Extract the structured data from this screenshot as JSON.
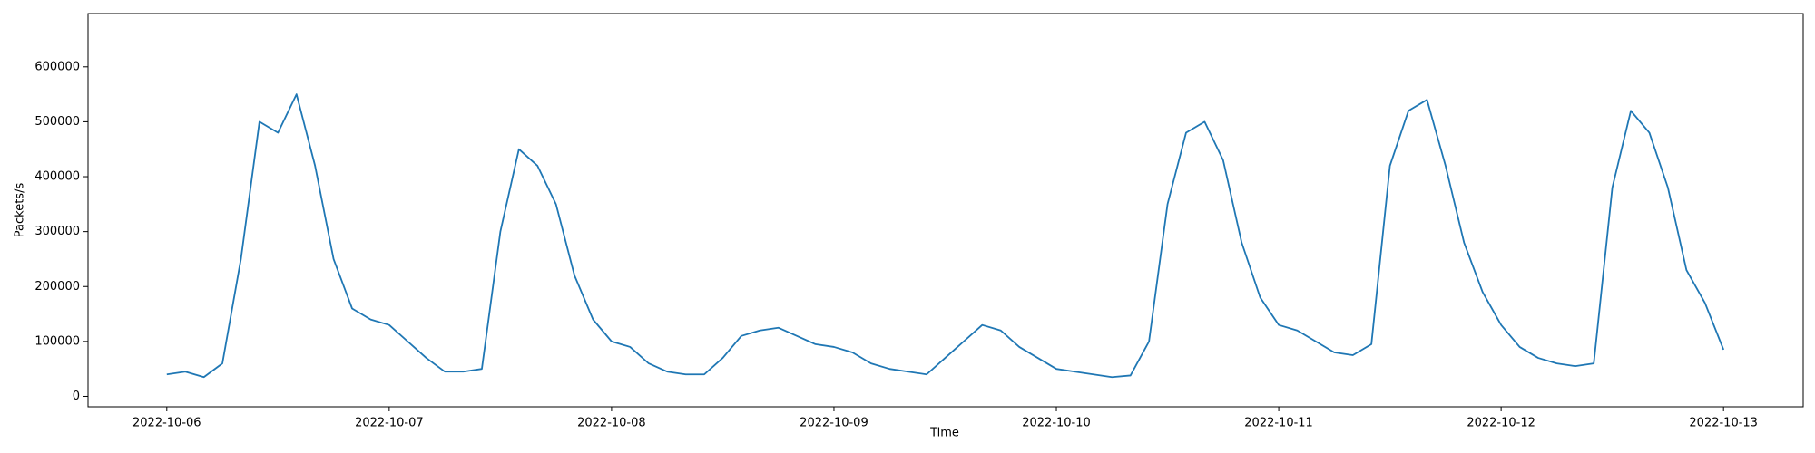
{
  "chart_data": {
    "type": "line",
    "xlabel": "Time",
    "ylabel": "Packets/s",
    "x": [
      0,
      2,
      4,
      6,
      8,
      10,
      12,
      14,
      16,
      18,
      20,
      22,
      24,
      26,
      28,
      30,
      32,
      34,
      36,
      38,
      40,
      42,
      44,
      46,
      48,
      50,
      52,
      54,
      56,
      58,
      60,
      62,
      64,
      66,
      68,
      70,
      72,
      74,
      76,
      78,
      80,
      82,
      84,
      86,
      88,
      90,
      92,
      94,
      96,
      98,
      100,
      102,
      104,
      106,
      108,
      110,
      112,
      114,
      116,
      118,
      120,
      122,
      124,
      126,
      128,
      130,
      132,
      134,
      136,
      138,
      140,
      142,
      144,
      146,
      148,
      150,
      152,
      154,
      156,
      158,
      160,
      162,
      164,
      166,
      168
    ],
    "series": [
      {
        "name": "Packets/s",
        "color": "#1f77b4",
        "values": [
          40000,
          45000,
          35000,
          60000,
          250000,
          500000,
          480000,
          550000,
          420000,
          250000,
          160000,
          140000,
          130000,
          100000,
          70000,
          45000,
          45000,
          50000,
          300000,
          450000,
          420000,
          350000,
          220000,
          140000,
          100000,
          90000,
          60000,
          45000,
          40000,
          40000,
          70000,
          110000,
          120000,
          125000,
          110000,
          95000,
          90000,
          80000,
          60000,
          50000,
          45000,
          40000,
          70000,
          100000,
          130000,
          120000,
          90000,
          70000,
          50000,
          45000,
          40000,
          35000,
          38000,
          100000,
          350000,
          480000,
          500000,
          430000,
          280000,
          180000,
          130000,
          120000,
          100000,
          80000,
          75000,
          95000,
          420000,
          520000,
          540000,
          420000,
          280000,
          190000,
          130000,
          90000,
          70000,
          60000,
          55000,
          60000,
          380000,
          520000,
          480000,
          380000,
          230000,
          170000,
          85000
        ]
      }
    ],
    "xlim": [
      -8.5,
      176.6
    ],
    "xticks": [
      {
        "value": 0,
        "label": "2022-10-06"
      },
      {
        "value": 24,
        "label": "2022-10-07"
      },
      {
        "value": 48,
        "label": "2022-10-08"
      },
      {
        "value": 72,
        "label": "2022-10-09"
      },
      {
        "value": 96,
        "label": "2022-10-10"
      },
      {
        "value": 120,
        "label": "2022-10-11"
      },
      {
        "value": 144,
        "label": "2022-10-12"
      },
      {
        "value": 168,
        "label": "2022-10-13"
      }
    ],
    "ylim": [
      -19000,
      697000
    ],
    "yticks": [
      0,
      100000,
      200000,
      300000,
      400000,
      500000,
      600000
    ],
    "grid": false
  }
}
